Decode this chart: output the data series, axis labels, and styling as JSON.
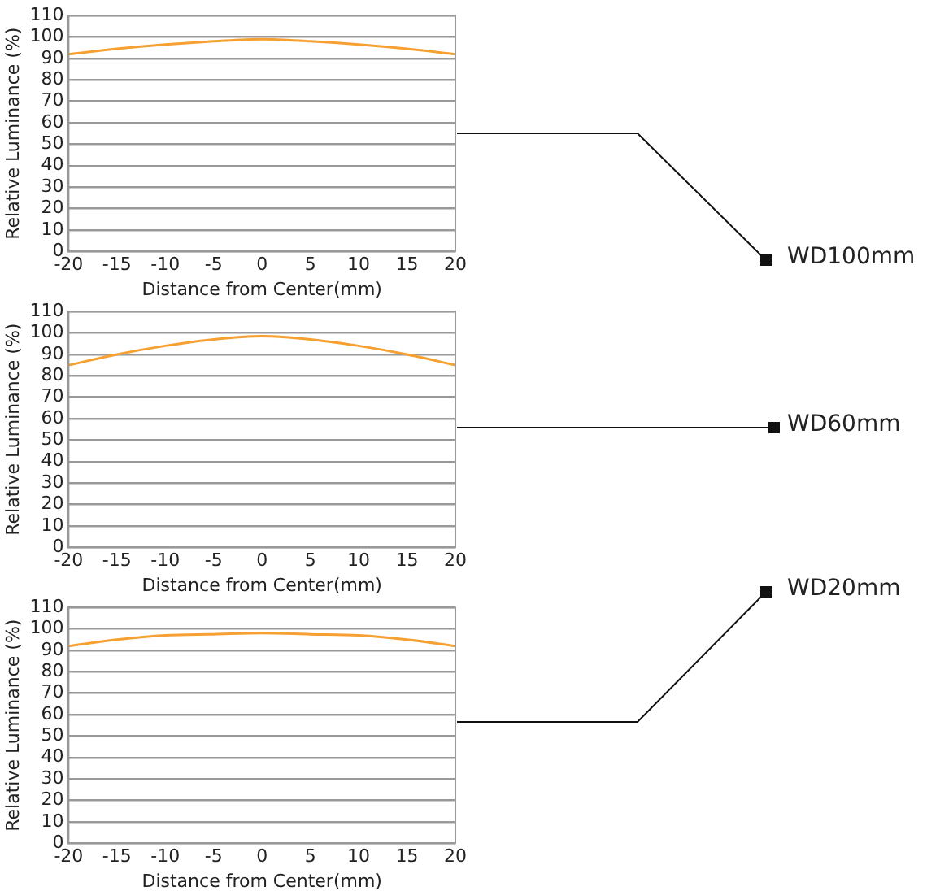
{
  "chart_data": [
    {
      "type": "line",
      "xlabel": "Distance from Center(mm)",
      "ylabel": "Relative Luminance (%)",
      "x": [
        -20,
        -15,
        -10,
        -5,
        0,
        5,
        10,
        15,
        20
      ],
      "series": [
        {
          "color": "#f5a030",
          "values": [
            92,
            94.5,
            96.5,
            98,
            99,
            98,
            96.5,
            94.5,
            92
          ]
        }
      ],
      "xlim": [
        -20,
        20
      ],
      "xticks": [
        -20,
        -15,
        -10,
        -5,
        0,
        5,
        10,
        15,
        20
      ],
      "ylim": [
        0,
        110
      ],
      "yticks": [
        0,
        10,
        20,
        30,
        40,
        50,
        60,
        70,
        80,
        90,
        100,
        110
      ],
      "grid": "y",
      "legend": false,
      "marker": "none",
      "annotations": [
        "WD100mm"
      ]
    },
    {
      "type": "line",
      "xlabel": "Distance from Center(mm)",
      "ylabel": "Relative Luminance (%)",
      "x": [
        -20,
        -15,
        -10,
        -5,
        0,
        5,
        10,
        15,
        20
      ],
      "series": [
        {
          "color": "#f5a030",
          "values": [
            85,
            90,
            94,
            97,
            98.5,
            97,
            94,
            90,
            85
          ]
        }
      ],
      "xlim": [
        -20,
        20
      ],
      "xticks": [
        -20,
        -15,
        -10,
        -5,
        0,
        5,
        10,
        15,
        20
      ],
      "ylim": [
        0,
        110
      ],
      "yticks": [
        0,
        10,
        20,
        30,
        40,
        50,
        60,
        70,
        80,
        90,
        100,
        110
      ],
      "grid": "y",
      "legend": false,
      "marker": "none",
      "annotations": [
        "WD60mm"
      ]
    },
    {
      "type": "line",
      "xlabel": "Distance from Center(mm)",
      "ylabel": "Relative Luminance (%)",
      "x": [
        -20,
        -15,
        -10,
        -5,
        0,
        5,
        10,
        15,
        20
      ],
      "series": [
        {
          "color": "#f5a030",
          "values": [
            92,
            95,
            97,
            97.5,
            98,
            97.5,
            97,
            95,
            92
          ]
        }
      ],
      "xlim": [
        -20,
        20
      ],
      "xticks": [
        -20,
        -15,
        -10,
        -5,
        0,
        5,
        10,
        15,
        20
      ],
      "ylim": [
        0,
        110
      ],
      "yticks": [
        0,
        10,
        20,
        30,
        40,
        50,
        60,
        70,
        80,
        90,
        100,
        110
      ],
      "grid": "y",
      "legend": false,
      "marker": "none",
      "annotations": [
        "WD20mm"
      ]
    }
  ]
}
